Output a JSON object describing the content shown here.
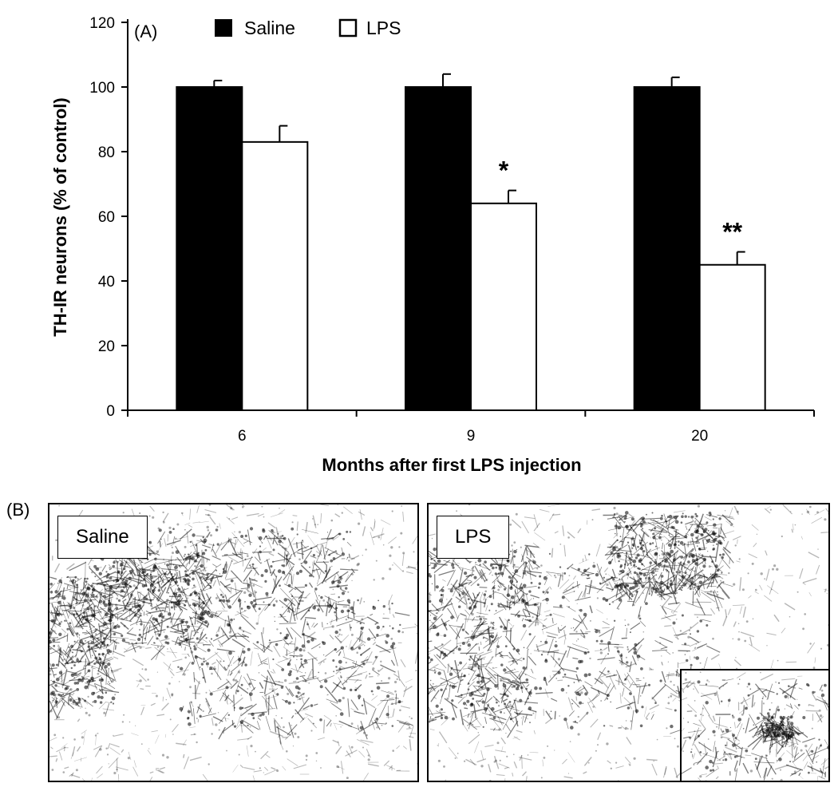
{
  "chart_data": {
    "type": "bar",
    "panel_label": "(A)",
    "categories": [
      "6",
      "9",
      "20"
    ],
    "series": [
      {
        "name": "Saline",
        "values": [
          100,
          100,
          100
        ],
        "errors": [
          2,
          4,
          3
        ],
        "color": "#000000"
      },
      {
        "name": "LPS",
        "values": [
          83,
          64,
          45
        ],
        "errors": [
          5,
          4,
          4
        ],
        "color": "#ffffff"
      }
    ],
    "annotations": [
      {
        "category": "9",
        "series": "LPS",
        "text": "*"
      },
      {
        "category": "20",
        "series": "LPS",
        "text": "**"
      }
    ],
    "xlabel": "Months after first LPS injection",
    "ylabel": "TH-IR neurons (% of control)",
    "ylim": [
      0,
      120
    ],
    "yticks": [
      "0",
      "20",
      "40",
      "60",
      "80",
      "100",
      "120"
    ],
    "grid": false,
    "legend_position": "top"
  },
  "panel_b": {
    "label": "(B)",
    "images": [
      {
        "label": "Saline"
      },
      {
        "label": "LPS"
      }
    ]
  }
}
